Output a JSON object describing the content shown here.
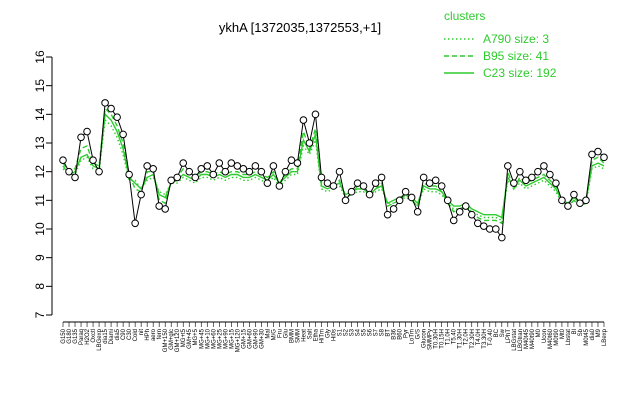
{
  "chart_data": {
    "type": "line",
    "title": "ykhA [1372035,1372553,+1]",
    "xlabel": "",
    "ylabel": "",
    "ylim": [
      7,
      16
    ],
    "yticks": [
      7,
      8,
      9,
      10,
      11,
      12,
      13,
      14,
      15,
      16
    ],
    "categories": [
      "G150",
      "G180",
      "G135",
      "Paraq",
      "H2O2",
      "Oxctl",
      "LBGexp",
      "dia15",
      "Diami",
      "dia5",
      "C90",
      "C30",
      "Cold",
      "nit",
      "HPh",
      "aero",
      "fern",
      "GM+150",
      "GM+glc",
      "GM+120",
      "MG+t5",
      "GM+45",
      "MG+5",
      "MG+45",
      "MG+10",
      "MG+60",
      "MG+25",
      "MG+90",
      "MG+15",
      "MG+120",
      "GM+15",
      "GM+60",
      "GM+90",
      "GM+30",
      "Mal",
      "M/G",
      "Fru",
      "Glu",
      "BMM",
      "SMM",
      "Heat",
      "Salt",
      "Etha",
      "HiTm",
      "Gly",
      "Hi0s",
      "S1",
      "S2",
      "S3",
      "S4",
      "S5",
      "S6",
      "S7",
      "S8",
      "BT",
      "B36",
      "B60",
      "Pyr",
      "LoTm",
      "G/S",
      "Glucon",
      "SMMPy",
      "T0.30H",
      "T0.15H",
      "T1.0H",
      "T5.40",
      "T1.30H",
      "T2.0H",
      "T2.30H",
      "T4.0H",
      "T3.30H",
      "T-0.40",
      "BC",
      "Sw",
      "LPhT",
      "LBGstat",
      "LBGtran",
      "M40t45",
      "M40t90",
      "M0",
      "Ucon",
      "M40t60",
      "M0t90",
      "Mt0",
      "Lbstat",
      "Bl",
      "Sb",
      "M0t45",
      "dia0",
      "M9",
      "LBexp"
    ],
    "series": [
      {
        "name": "",
        "values": [
          12.4,
          12.0,
          11.8,
          13.2,
          13.4,
          12.4,
          12.0,
          14.4,
          14.2,
          13.9,
          13.3,
          11.9,
          10.2,
          11.2,
          12.2,
          12.1,
          10.8,
          10.7,
          11.7,
          11.8,
          12.3,
          12.0,
          11.8,
          12.1,
          12.2,
          11.9,
          12.3,
          12.0,
          12.3,
          12.2,
          12.1,
          12.0,
          12.2,
          12.0,
          11.6,
          12.2,
          11.5,
          12.0,
          12.4,
          12.3,
          13.8,
          13.0,
          14.0,
          11.8,
          11.6,
          11.5,
          12.0,
          11.0,
          11.3,
          11.6,
          11.5,
          11.2,
          11.6,
          11.8,
          10.5,
          10.7,
          11.0,
          11.3,
          11.1,
          10.6,
          11.8,
          11.6,
          11.7,
          11.5,
          11.0,
          10.3,
          10.6,
          10.8,
          10.5,
          10.2,
          10.1,
          10.0,
          10.0,
          9.7,
          12.2,
          11.6,
          12.0,
          11.7,
          11.8,
          12.0,
          12.2,
          11.9,
          11.6,
          11.0,
          10.8,
          11.2,
          10.9,
          11.0,
          12.6,
          12.7,
          12.5
        ]
      },
      {
        "name": "C23 size: 192",
        "values": [
          12.2,
          11.9,
          12.0,
          12.5,
          12.6,
          12.2,
          12.1,
          14.0,
          13.8,
          13.4,
          12.8,
          11.8,
          11.6,
          11.4,
          11.8,
          11.9,
          11.2,
          11.1,
          11.6,
          11.7,
          11.9,
          11.8,
          11.7,
          11.9,
          11.9,
          11.8,
          11.9,
          11.8,
          11.9,
          11.9,
          11.8,
          11.8,
          11.9,
          11.8,
          11.7,
          11.9,
          11.6,
          11.8,
          12.0,
          12.0,
          13.1,
          12.7,
          13.3,
          11.5,
          11.4,
          11.5,
          11.6,
          11.2,
          11.3,
          11.4,
          11.4,
          11.2,
          11.4,
          11.5,
          10.9,
          11.0,
          11.1,
          11.2,
          11.1,
          10.9,
          11.5,
          11.4,
          11.4,
          11.3,
          11.0,
          10.8,
          10.8,
          10.9,
          10.7,
          10.6,
          10.5,
          10.5,
          10.5,
          10.4,
          11.8,
          11.5,
          11.7,
          11.5,
          11.6,
          11.7,
          11.8,
          11.6,
          11.4,
          11.0,
          10.9,
          11.1,
          10.9,
          11.0,
          12.2,
          12.3,
          12.2
        ]
      },
      {
        "name": "B95 size: 41",
        "values": [
          12.3,
          12.0,
          12.1,
          12.8,
          12.9,
          12.3,
          12.2,
          14.2,
          14.0,
          13.6,
          13.0,
          11.9,
          11.4,
          11.3,
          12.0,
          12.0,
          11.0,
          10.9,
          11.7,
          11.8,
          12.1,
          11.9,
          11.8,
          12.0,
          12.0,
          11.9,
          12.0,
          11.9,
          12.0,
          12.0,
          11.9,
          11.9,
          12.0,
          11.9,
          11.8,
          12.0,
          11.6,
          11.9,
          12.1,
          12.1,
          13.4,
          12.8,
          13.5,
          11.6,
          11.5,
          11.5,
          11.7,
          11.1,
          11.2,
          11.5,
          11.4,
          11.1,
          11.4,
          11.6,
          10.8,
          10.9,
          11.0,
          11.2,
          11.0,
          10.8,
          11.6,
          11.5,
          11.5,
          11.3,
          10.9,
          10.6,
          10.7,
          10.8,
          10.6,
          10.4,
          10.3,
          10.3,
          10.3,
          10.2,
          12.0,
          11.4,
          11.8,
          11.6,
          11.7,
          11.8,
          11.9,
          11.7,
          11.5,
          10.9,
          10.8,
          11.0,
          10.8,
          10.9,
          12.4,
          12.5,
          12.3
        ]
      },
      {
        "name": "A790 size: 3",
        "values": [
          12.1,
          11.9,
          11.9,
          12.4,
          12.5,
          12.1,
          12.0,
          13.8,
          13.6,
          13.2,
          12.6,
          11.7,
          11.7,
          11.4,
          11.7,
          11.8,
          11.3,
          11.2,
          11.6,
          11.6,
          11.8,
          11.7,
          11.6,
          11.8,
          11.8,
          11.7,
          11.8,
          11.7,
          11.8,
          11.8,
          11.7,
          11.7,
          11.8,
          11.7,
          11.6,
          11.8,
          11.5,
          11.7,
          11.9,
          11.9,
          12.9,
          12.6,
          13.1,
          11.4,
          11.3,
          11.4,
          11.5,
          11.1,
          11.2,
          11.3,
          11.3,
          11.1,
          11.3,
          11.4,
          10.9,
          10.9,
          11.0,
          11.1,
          11.0,
          10.8,
          11.4,
          11.3,
          11.3,
          11.2,
          10.9,
          10.7,
          10.7,
          10.8,
          10.6,
          10.5,
          10.4,
          10.4,
          10.4,
          10.3,
          11.7,
          11.4,
          11.6,
          11.4,
          11.5,
          11.6,
          11.7,
          11.5,
          11.3,
          10.9,
          10.8,
          11.0,
          10.8,
          10.9,
          12.1,
          12.2,
          12.1
        ]
      }
    ],
    "legend": {
      "title": "clusters",
      "placement": "top-right",
      "entries": [
        {
          "label": "A790 size: 3",
          "style": "dotted"
        },
        {
          "label": "B95 size: 41",
          "style": "dashed"
        },
        {
          "label": "C23 size: 192",
          "style": "solid"
        }
      ]
    },
    "colors": {
      "profile": "#000000",
      "cluster": "#2ecc2e",
      "point_fill": "#ffffff"
    },
    "grid": false
  }
}
